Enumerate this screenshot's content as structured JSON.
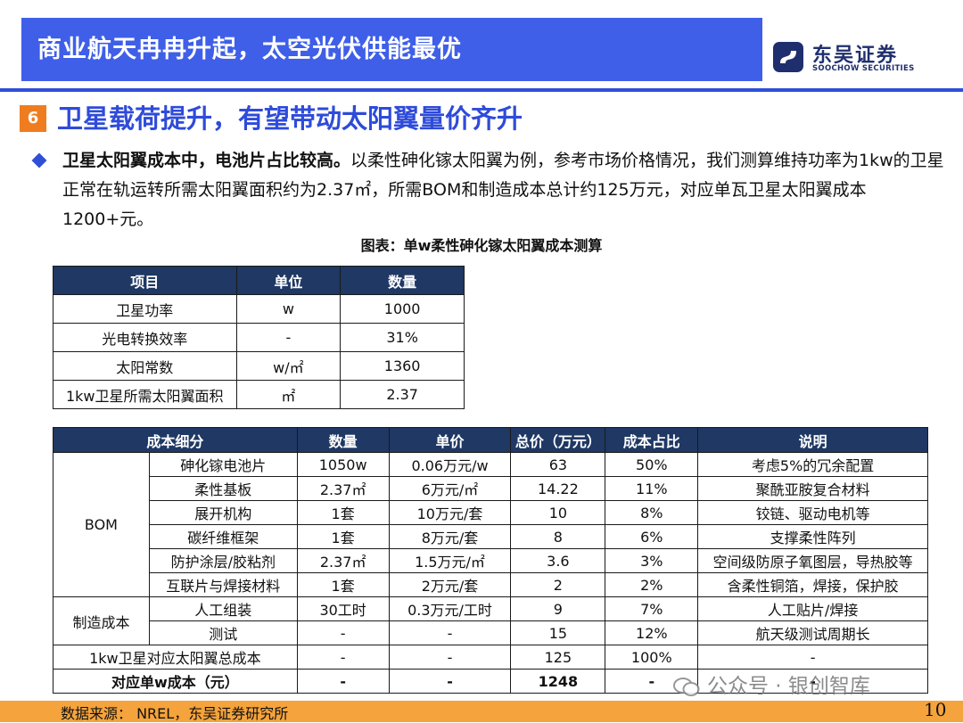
{
  "header": {
    "title": "商业航天冉冉升起，太空光伏供能最优",
    "logo_cn": "东吴证券",
    "logo_en": "SOOCHOW SECURITIES"
  },
  "section": {
    "number": "6",
    "title": "卫星载荷提升，有望带动太阳翼量价齐升"
  },
  "bullet": {
    "bold": "卫星太阳翼成本中，电池片占比较高。",
    "text": "以柔性砷化镓太阳翼为例，参考市场价格情况，我们测算维持功率为1kw的卫星正常在轨运转所需太阳翼面积约为2.37㎡，所需BOM和制造成本总计约125万元，对应单瓦卫星太阳翼成本1200+元。"
  },
  "caption": "图表：单w柔性砷化镓太阳翼成本测算",
  "table1": {
    "headers": [
      "项目",
      "单位",
      "数量"
    ],
    "rows": [
      [
        "卫星功率",
        "w",
        "1000"
      ],
      [
        "光电转换效率",
        "-",
        "31%"
      ],
      [
        "太阳常数",
        "w/㎡",
        "1360"
      ],
      [
        "1kw卫星所需太阳翼面积",
        "㎡",
        "2.37"
      ]
    ]
  },
  "table2": {
    "headers": [
      "成本细分",
      "数量",
      "单价",
      "总价（万元）",
      "成本占比",
      "说明"
    ],
    "bom_label": "BOM",
    "bom_rows": [
      [
        "砷化镓电池片",
        "1050w",
        "0.06万元/w",
        "63",
        "50%",
        "考虑5%的冗余配置"
      ],
      [
        "柔性基板",
        "2.37㎡",
        "6万元/㎡",
        "14.22",
        "11%",
        "聚酰亚胺复合材料"
      ],
      [
        "展开机构",
        "1套",
        "10万元/套",
        "10",
        "8%",
        "铰链、驱动电机等"
      ],
      [
        "碳纤维框架",
        "1套",
        "8万元/套",
        "8",
        "6%",
        "支撑柔性阵列"
      ],
      [
        "防护涂层/胶粘剂",
        "2.37㎡",
        "1.5万元/㎡",
        "3.6",
        "3%",
        "空间级防原子氧图层，导热胶等"
      ],
      [
        "互联片与焊接材料",
        "1套",
        "2万元/套",
        "2",
        "2%",
        "含柔性铜箔，焊接，保护胶"
      ]
    ],
    "mfg_label": "制造成本",
    "mfg_rows": [
      [
        "人工组装",
        "30工时",
        "0.3万元/工时",
        "9",
        "7%",
        "人工贴片/焊接"
      ],
      [
        "测试",
        "-",
        "-",
        "15",
        "12%",
        "航天级测试周期长"
      ]
    ],
    "total_row": [
      "1kw卫星对应太阳翼总成本",
      "-",
      "-",
      "125",
      "100%",
      "-"
    ],
    "unit_row": [
      "对应单w成本（元）",
      "-",
      "-",
      "1248",
      "-",
      "-"
    ]
  },
  "footer": {
    "source": "数据来源： NREL，东吴证券研究所",
    "page": "10",
    "watermark": "公众号 · 银创智库"
  }
}
